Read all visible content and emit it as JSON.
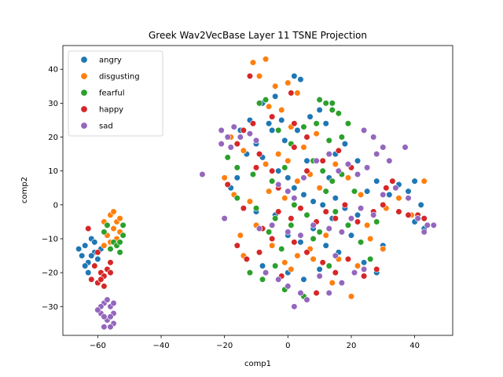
{
  "chart_data": {
    "type": "scatter",
    "title": "Greek Wav2VecBase Layer 11 TSNE Projection",
    "xlabel": "comp1",
    "ylabel": "comp2",
    "xlim": [
      -71,
      52
    ],
    "ylim": [
      -38.5,
      47
    ],
    "xticks": [
      -60,
      -40,
      -20,
      0,
      20,
      40
    ],
    "yticks": [
      -30,
      -20,
      -10,
      0,
      10,
      20,
      30,
      40
    ],
    "xtick_labels": [
      "−60",
      "−40",
      "−20",
      "0",
      "20",
      "40"
    ],
    "ytick_labels": [
      "−30",
      "−20",
      "−10",
      "0",
      "10",
      "20",
      "30",
      "40"
    ],
    "legend_position": "upper-left",
    "series": [
      {
        "name": "angry",
        "color": "#1f77b4",
        "points": [
          [
            -65,
            -15
          ],
          [
            -64,
            -12
          ],
          [
            -63,
            -17
          ],
          [
            -62,
            -10
          ],
          [
            -61,
            -14
          ],
          [
            -64,
            -18
          ],
          [
            -66,
            -13
          ],
          [
            -60,
            -16
          ],
          [
            -63,
            -20
          ],
          [
            -61,
            -11
          ],
          [
            -59,
            -13
          ],
          [
            -62,
            -15
          ],
          [
            2,
            38
          ],
          [
            4,
            37
          ],
          [
            -4,
            32
          ],
          [
            -8,
            30
          ],
          [
            -12,
            25
          ],
          [
            -15,
            22
          ],
          [
            -10,
            18
          ],
          [
            -6,
            24
          ],
          [
            -2,
            25
          ],
          [
            -5,
            22
          ],
          [
            -1,
            19
          ],
          [
            3,
            22
          ],
          [
            7,
            26
          ],
          [
            10,
            28
          ],
          [
            12,
            24
          ],
          [
            -13,
            15
          ],
          [
            -8,
            14
          ],
          [
            -3,
            10
          ],
          [
            0,
            8
          ],
          [
            2,
            5
          ],
          [
            5,
            3
          ],
          [
            8,
            1
          ],
          [
            11,
            0
          ],
          [
            15,
            2
          ],
          [
            18,
            -1
          ],
          [
            22,
            -3
          ],
          [
            25,
            4
          ],
          [
            28,
            7
          ],
          [
            32,
            3
          ],
          [
            35,
            6
          ],
          [
            38,
            4
          ],
          [
            40,
            7
          ],
          [
            42,
            0
          ],
          [
            40,
            -5
          ],
          [
            43,
            -7
          ],
          [
            -10,
            -2
          ],
          [
            -5,
            -6
          ],
          [
            0,
            -9
          ],
          [
            4,
            -11
          ],
          [
            8,
            -7
          ],
          [
            12,
            -12
          ],
          [
            16,
            -14
          ],
          [
            20,
            -9
          ],
          [
            24,
            -17
          ],
          [
            28,
            -20
          ],
          [
            10,
            -19
          ],
          [
            -8,
            -18
          ],
          [
            0,
            -20
          ],
          [
            5,
            -22
          ],
          [
            18,
            18
          ],
          [
            15,
            15
          ],
          [
            22,
            13
          ],
          [
            13,
            8
          ],
          [
            6,
            13
          ],
          [
            -16,
            8
          ],
          [
            -18,
            5
          ],
          [
            30,
            -12
          ],
          [
            14,
            -4
          ],
          [
            -4,
            -3
          ]
        ]
      },
      {
        "name": "disgusting",
        "color": "#ff7f0e",
        "points": [
          [
            -58,
            -5
          ],
          [
            -56,
            -3
          ],
          [
            -55,
            -7
          ],
          [
            -57,
            -9
          ],
          [
            -54,
            -5
          ],
          [
            -53,
            -8
          ],
          [
            -56,
            -11
          ],
          [
            -58,
            -12
          ],
          [
            -55,
            -2
          ],
          [
            -57,
            -6
          ],
          [
            -54,
            -10
          ],
          [
            -53,
            -4
          ],
          [
            -11,
            42
          ],
          [
            -7,
            43
          ],
          [
            -4,
            35
          ],
          [
            0,
            36
          ],
          [
            3,
            33
          ],
          [
            -9,
            38
          ],
          [
            -6,
            29
          ],
          [
            -2,
            28
          ],
          [
            1,
            23
          ],
          [
            -18,
            20
          ],
          [
            -14,
            16
          ],
          [
            -10,
            19
          ],
          [
            -7,
            12
          ],
          [
            -3,
            15
          ],
          [
            0,
            13
          ],
          [
            5,
            17
          ],
          [
            9,
            21
          ],
          [
            -20,
            8
          ],
          [
            -17,
            3
          ],
          [
            -12,
            1
          ],
          [
            -6,
            4
          ],
          [
            -1,
            2
          ],
          [
            3,
            7
          ],
          [
            7,
            9
          ],
          [
            10,
            5
          ],
          [
            15,
            12
          ],
          [
            19,
            8
          ],
          [
            23,
            3
          ],
          [
            27,
            -3
          ],
          [
            31,
            -1
          ],
          [
            35,
            2
          ],
          [
            39,
            -3
          ],
          [
            43,
            7
          ],
          [
            -15,
            -9
          ],
          [
            -10,
            -6
          ],
          [
            -5,
            -12
          ],
          [
            -1,
            -17
          ],
          [
            3,
            -15
          ],
          [
            7,
            -13
          ],
          [
            12,
            -9
          ],
          [
            16,
            -16
          ],
          [
            20,
            -27
          ],
          [
            25,
            -6
          ],
          [
            30,
            -13
          ],
          [
            -14,
            -15
          ],
          [
            1,
            -19
          ],
          [
            14,
            -23
          ],
          [
            22,
            -18
          ],
          [
            26,
            -10
          ],
          [
            8,
            -16
          ]
        ]
      },
      {
        "name": "fearful",
        "color": "#2ca02c",
        "points": [
          [
            -57,
            -6
          ],
          [
            -55,
            -11
          ],
          [
            -53,
            -14
          ],
          [
            -52,
            -9
          ],
          [
            -58,
            -8
          ],
          [
            -54,
            -12
          ],
          [
            -52,
            -6
          ],
          [
            -56,
            -13
          ],
          [
            -53,
            -11
          ],
          [
            -9,
            30
          ],
          [
            -7,
            31
          ],
          [
            10,
            31
          ],
          [
            12,
            30
          ],
          [
            14,
            28
          ],
          [
            16,
            27
          ],
          [
            19,
            24
          ],
          [
            14,
            30
          ],
          [
            9,
            24
          ],
          [
            -3,
            22
          ],
          [
            1,
            18
          ],
          [
            5,
            23
          ],
          [
            13,
            19
          ],
          [
            17,
            20
          ],
          [
            -19,
            14
          ],
          [
            -16,
            11
          ],
          [
            -11,
            9
          ],
          [
            -5,
            7
          ],
          [
            -1,
            11
          ],
          [
            8,
            13
          ],
          [
            11,
            10
          ],
          [
            14,
            7
          ],
          [
            17,
            9
          ],
          [
            21,
            4
          ],
          [
            -16,
            2
          ],
          [
            -10,
            -1
          ],
          [
            -4,
            -4
          ],
          [
            1,
            -6
          ],
          [
            6,
            -3
          ],
          [
            10,
            -8
          ],
          [
            15,
            -2
          ],
          [
            19,
            -6
          ],
          [
            23,
            -11
          ],
          [
            -12,
            -20
          ],
          [
            -8,
            -22
          ],
          [
            -4,
            -18
          ],
          [
            -1,
            -25
          ],
          [
            5,
            -27
          ],
          [
            10,
            -21
          ],
          [
            13,
            -18
          ],
          [
            17,
            -23
          ],
          [
            21,
            -20
          ],
          [
            26,
            -16
          ],
          [
            -6,
            -8
          ],
          [
            8,
            -10
          ],
          [
            28,
            -5
          ],
          [
            2,
            0
          ],
          [
            12,
            4
          ],
          [
            -2,
            -13
          ]
        ]
      },
      {
        "name": "happy",
        "color": "#d62728",
        "points": [
          [
            -61,
            -18
          ],
          [
            -59,
            -20
          ],
          [
            -58,
            -21
          ],
          [
            -60,
            -23
          ],
          [
            -57,
            -19
          ],
          [
            -62,
            -22
          ],
          [
            -56,
            -17
          ],
          [
            -58,
            -24
          ],
          [
            -63,
            -7
          ],
          [
            -60,
            -14
          ],
          [
            -59,
            -22
          ],
          [
            -56,
            -20
          ],
          [
            -12,
            38
          ],
          [
            1,
            33
          ],
          [
            -5,
            26
          ],
          [
            2,
            24
          ],
          [
            -11,
            24
          ],
          [
            -14,
            22
          ],
          [
            6,
            20
          ],
          [
            -16,
            18
          ],
          [
            -9,
            15
          ],
          [
            -5,
            10
          ],
          [
            -10,
            11
          ],
          [
            -3,
            5
          ],
          [
            2,
            17
          ],
          [
            6,
            10
          ],
          [
            11,
            13
          ],
          [
            16,
            16
          ],
          [
            20,
            11
          ],
          [
            24,
            22
          ],
          [
            -19,
            6
          ],
          [
            -14,
            -1
          ],
          [
            -8,
            -7
          ],
          [
            -3,
            -2
          ],
          [
            1,
            -4
          ],
          [
            4,
            -1
          ],
          [
            9,
            -5
          ],
          [
            12,
            -2
          ],
          [
            15,
            -4
          ],
          [
            18,
            0
          ],
          [
            22,
            -5
          ],
          [
            27,
            -2
          ],
          [
            31,
            5
          ],
          [
            35,
            -2
          ],
          [
            38,
            -3
          ],
          [
            41,
            -3
          ],
          [
            43,
            -4
          ],
          [
            -13,
            -16
          ],
          [
            -9,
            -14
          ],
          [
            -5,
            -10
          ],
          [
            -2,
            -21
          ],
          [
            2,
            -11
          ],
          [
            6,
            -14
          ],
          [
            11,
            -17
          ],
          [
            15,
            -20
          ],
          [
            19,
            -16
          ],
          [
            24,
            -21
          ],
          [
            28,
            -19
          ],
          [
            -16,
            -12
          ],
          [
            9,
            -26
          ],
          [
            30,
            0
          ],
          [
            33,
            7
          ]
        ]
      },
      {
        "name": "sad",
        "color": "#9467bd",
        "points": [
          [
            -58,
            -29
          ],
          [
            -56,
            -30
          ],
          [
            -55,
            -32
          ],
          [
            -57,
            -34
          ],
          [
            -59,
            -32
          ],
          [
            -55,
            -35
          ],
          [
            -58,
            -36
          ],
          [
            -56,
            -33
          ],
          [
            -59,
            -30
          ],
          [
            -57,
            -28
          ],
          [
            -55,
            -29
          ],
          [
            -58,
            -33
          ],
          [
            -60,
            -31
          ],
          [
            -56,
            -36
          ],
          [
            -27,
            9
          ],
          [
            -21,
            22
          ],
          [
            -19,
            20
          ],
          [
            -17,
            23
          ],
          [
            -21,
            18
          ],
          [
            -15,
            20
          ],
          [
            -12,
            21
          ],
          [
            -18,
            17
          ],
          [
            -10,
            19
          ],
          [
            -3,
            6
          ],
          [
            0,
            4
          ],
          [
            2,
            2
          ],
          [
            5,
            8
          ],
          [
            9,
            13
          ],
          [
            13,
            15
          ],
          [
            16,
            10
          ],
          [
            19,
            12
          ],
          [
            22,
            9
          ],
          [
            25,
            11
          ],
          [
            28,
            15
          ],
          [
            30,
            17
          ],
          [
            32,
            13
          ],
          [
            37,
            17
          ],
          [
            34,
            5
          ],
          [
            38,
            2
          ],
          [
            41,
            -4
          ],
          [
            43,
            -8
          ],
          [
            44,
            -6
          ],
          [
            46,
            -6
          ],
          [
            -9,
            -7
          ],
          [
            -5,
            -6
          ],
          [
            0,
            -8
          ],
          [
            4,
            -9
          ],
          [
            8,
            -6
          ],
          [
            13,
            -7
          ],
          [
            17,
            -8
          ],
          [
            20,
            -4
          ],
          [
            23,
            -1
          ],
          [
            27,
            -3
          ],
          [
            30,
            3
          ],
          [
            -7,
            -20
          ],
          [
            -3,
            -22
          ],
          [
            0,
            -24
          ],
          [
            4,
            -26
          ],
          [
            6,
            -28
          ],
          [
            10,
            -21
          ],
          [
            13,
            -26
          ],
          [
            17,
            -23
          ],
          [
            21,
            -20
          ],
          [
            24,
            -19
          ],
          [
            24,
            22
          ],
          [
            27,
            20
          ],
          [
            15,
            -15
          ],
          [
            -20,
            -4
          ],
          [
            2,
            -30
          ]
        ]
      }
    ]
  }
}
